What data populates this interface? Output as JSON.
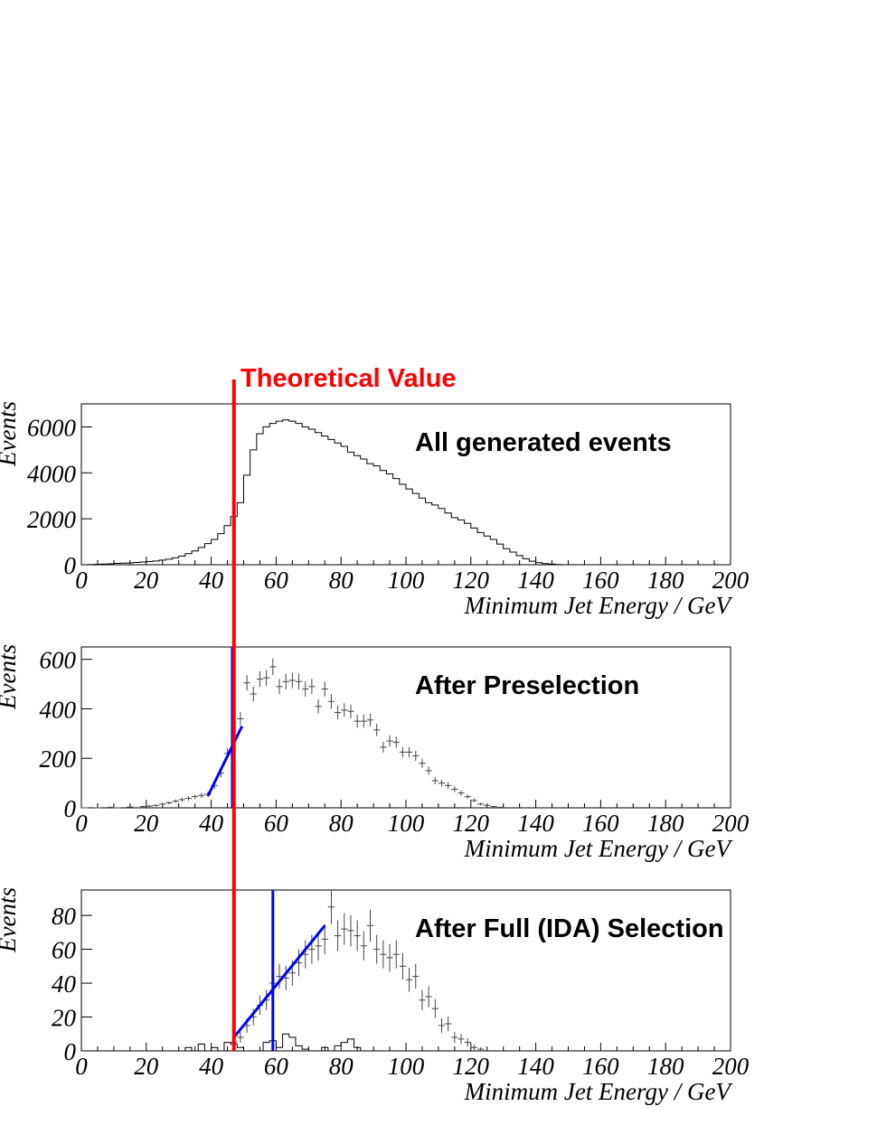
{
  "theory_label": "Theoretical Value",
  "theory_value": 47,
  "colors": {
    "theory": "#ff0000",
    "fit": "#0000ff",
    "hist": "#000000"
  },
  "chart_data": [
    {
      "type": "histogram",
      "title": "All generated events",
      "xlabel": "Minimum Jet Energy / GeV",
      "ylabel": "Events",
      "xlim": [
        0,
        200
      ],
      "ylim": [
        0,
        7000
      ],
      "xticks": [
        0,
        20,
        40,
        60,
        80,
        100,
        120,
        140,
        160,
        180,
        200
      ],
      "yticks": [
        0,
        2000,
        4000,
        6000
      ],
      "bin_width": 2,
      "bin_start": 0,
      "values": [
        0,
        10,
        20,
        30,
        40,
        60,
        70,
        80,
        100,
        120,
        140,
        160,
        200,
        240,
        300,
        380,
        480,
        600,
        750,
        920,
        1100,
        1350,
        1700,
        2100,
        2700,
        3900,
        5000,
        5700,
        6000,
        6150,
        6250,
        6300,
        6250,
        6150,
        6000,
        5900,
        5750,
        5600,
        5450,
        5300,
        5150,
        4900,
        4750,
        4600,
        4400,
        4300,
        4100,
        3950,
        3750,
        3500,
        3300,
        3100,
        2900,
        2700,
        2600,
        2450,
        2250,
        2050,
        1950,
        1800,
        1600,
        1400,
        1250,
        1100,
        900,
        700,
        550,
        400,
        260,
        150,
        90,
        50,
        30,
        10,
        0
      ]
    },
    {
      "type": "errorbar",
      "title": "After Preselection",
      "xlabel": "Minimum Jet Energy / GeV",
      "ylabel": "Events",
      "xlim": [
        0,
        200
      ],
      "ylim": [
        0,
        650
      ],
      "xticks": [
        0,
        20,
        40,
        60,
        80,
        100,
        120,
        140,
        160,
        180,
        200
      ],
      "yticks": [
        0,
        200,
        400,
        600
      ],
      "bin_width": 2,
      "points": [
        [
          1,
          0
        ],
        [
          5,
          0
        ],
        [
          9,
          2
        ],
        [
          11,
          0
        ],
        [
          15,
          3
        ],
        [
          19,
          5
        ],
        [
          21,
          7
        ],
        [
          23,
          10
        ],
        [
          25,
          15
        ],
        [
          27,
          20
        ],
        [
          29,
          27
        ],
        [
          31,
          33
        ],
        [
          33,
          38
        ],
        [
          35,
          45
        ],
        [
          37,
          50
        ],
        [
          39,
          55
        ],
        [
          41,
          90
        ],
        [
          43,
          140
        ],
        [
          45,
          220
        ],
        [
          47,
          280
        ],
        [
          49,
          360
        ],
        [
          51,
          505
        ],
        [
          53,
          460
        ],
        [
          55,
          520
        ],
        [
          57,
          525
        ],
        [
          59,
          570
        ],
        [
          61,
          490
        ],
        [
          63,
          510
        ],
        [
          65,
          515
        ],
        [
          67,
          510
        ],
        [
          69,
          480
        ],
        [
          71,
          490
        ],
        [
          73,
          410
        ],
        [
          75,
          480
        ],
        [
          77,
          430
        ],
        [
          79,
          385
        ],
        [
          81,
          395
        ],
        [
          83,
          390
        ],
        [
          85,
          350
        ],
        [
          87,
          350
        ],
        [
          89,
          355
        ],
        [
          91,
          315
        ],
        [
          93,
          245
        ],
        [
          95,
          270
        ],
        [
          97,
          265
        ],
        [
          99,
          225
        ],
        [
          101,
          225
        ],
        [
          103,
          210
        ],
        [
          105,
          180
        ],
        [
          107,
          150
        ],
        [
          109,
          110
        ],
        [
          111,
          100
        ],
        [
          113,
          90
        ],
        [
          115,
          75
        ],
        [
          117,
          60
        ],
        [
          119,
          45
        ],
        [
          121,
          30
        ],
        [
          123,
          15
        ],
        [
          125,
          10
        ],
        [
          127,
          5
        ],
        [
          129,
          2
        ]
      ],
      "fit_line": [
        [
          39,
          48
        ],
        [
          49.5,
          330
        ]
      ],
      "cut_value": 46.5
    },
    {
      "type": "errorbar",
      "title": "After Full (IDA) Selection",
      "xlabel": "Minimum Jet Energy / GeV",
      "ylabel": "Events",
      "xlim": [
        0,
        200
      ],
      "ylim": [
        0,
        95
      ],
      "xticks": [
        0,
        20,
        40,
        60,
        80,
        100,
        120,
        140,
        160,
        180,
        200
      ],
      "yticks": [
        0,
        20,
        40,
        60,
        80
      ],
      "bin_width": 2,
      "points": [
        [
          47,
          5
        ],
        [
          49,
          8
        ],
        [
          51,
          15
        ],
        [
          53,
          20
        ],
        [
          55,
          27
        ],
        [
          57,
          30
        ],
        [
          59,
          40
        ],
        [
          61,
          44
        ],
        [
          63,
          43
        ],
        [
          65,
          46
        ],
        [
          67,
          52
        ],
        [
          69,
          57
        ],
        [
          71,
          60
        ],
        [
          73,
          62
        ],
        [
          75,
          66
        ],
        [
          77,
          85
        ],
        [
          79,
          68
        ],
        [
          81,
          72
        ],
        [
          83,
          71
        ],
        [
          85,
          68
        ],
        [
          87,
          62
        ],
        [
          89,
          74
        ],
        [
          91,
          60
        ],
        [
          93,
          57
        ],
        [
          95,
          55
        ],
        [
          97,
          57
        ],
        [
          99,
          50
        ],
        [
          101,
          42
        ],
        [
          103,
          44
        ],
        [
          105,
          30
        ],
        [
          107,
          32
        ],
        [
          109,
          25
        ],
        [
          111,
          15
        ],
        [
          113,
          16
        ],
        [
          115,
          8
        ],
        [
          117,
          7
        ],
        [
          119,
          5
        ],
        [
          121,
          2
        ],
        [
          123,
          1
        ]
      ],
      "background_bins": [
        [
          32,
          2
        ],
        [
          34,
          0
        ],
        [
          36,
          4
        ],
        [
          38,
          0
        ],
        [
          40,
          2
        ],
        [
          42,
          0
        ],
        [
          44,
          5
        ],
        [
          46,
          4
        ],
        [
          48,
          2
        ],
        [
          50,
          0
        ],
        [
          52,
          0
        ],
        [
          54,
          0
        ],
        [
          56,
          5
        ],
        [
          58,
          6
        ],
        [
          60,
          2
        ],
        [
          62,
          10
        ],
        [
          64,
          8
        ],
        [
          66,
          3
        ],
        [
          68,
          1
        ],
        [
          70,
          0
        ],
        [
          72,
          0
        ],
        [
          74,
          2
        ],
        [
          76,
          0
        ],
        [
          78,
          3
        ],
        [
          80,
          5
        ],
        [
          82,
          7
        ],
        [
          84,
          2
        ]
      ],
      "fit_line": [
        [
          47,
          8
        ],
        [
          75,
          74
        ]
      ],
      "cut_value": 59
    }
  ]
}
